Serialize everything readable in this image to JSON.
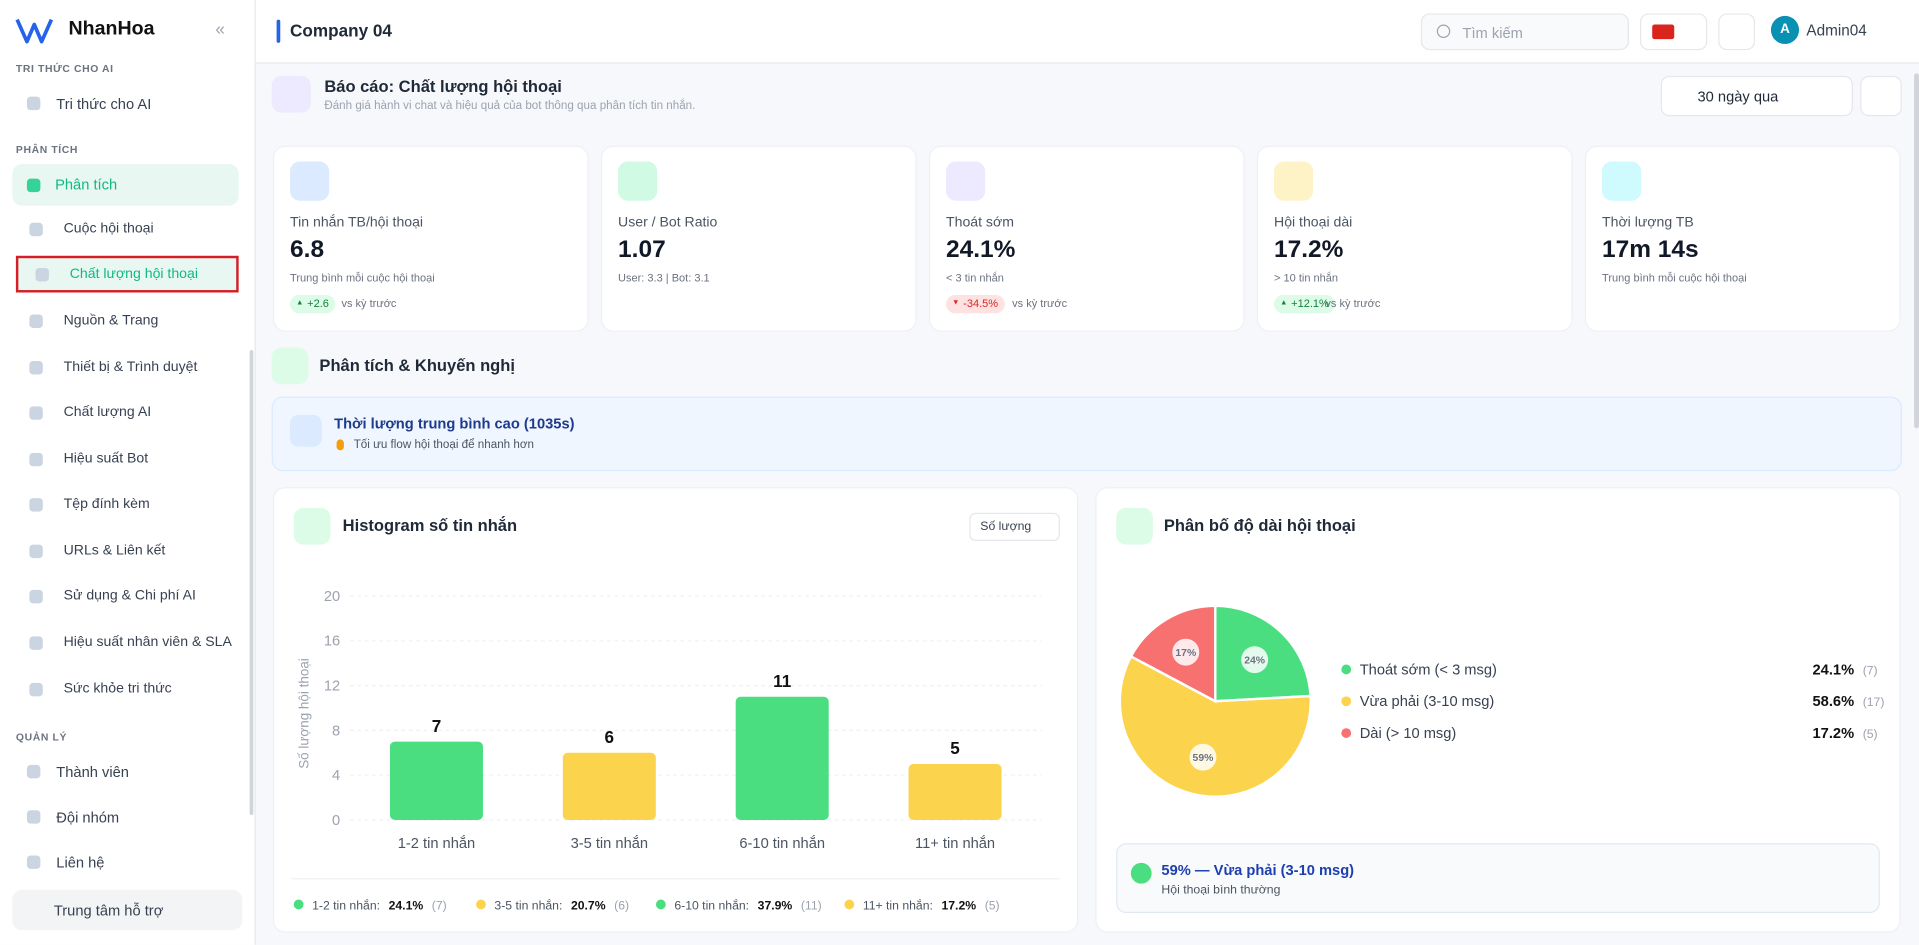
{
  "sidebar": {
    "brand": "NhanHoa",
    "sections": [
      {
        "title": "TRI THỨC CHO AI",
        "items": [
          "Tri thức cho AI"
        ]
      },
      {
        "title": "PHÂN TÍCH",
        "group": "Phân tích",
        "items": [
          "Cuộc hội thoại",
          "Chất lượng hội thoại",
          "Nguồn & Trang",
          "Thiết bị & Trình duyệt",
          "Chất lượng AI",
          "Hiệu suất Bot",
          "Tệp đính kèm",
          "URLs & Liên kết",
          "Sử dụng & Chi phí AI",
          "Hiệu suất nhân viên & SLA",
          "Sức khỏe tri thức"
        ]
      },
      {
        "title": "QUẢN LÝ",
        "items": [
          "Thành viên",
          "Đội nhóm",
          "Liên hệ"
        ]
      }
    ],
    "support": "Trung tâm hỗ trợ"
  },
  "header": {
    "company": "Company 04",
    "search": "Tìm kiếm",
    "avatar": "A",
    "user": "Admin04"
  },
  "report": {
    "title": "Báo cáo: Chất lượng hội thoại",
    "subtitle": "Đánh giá hành vi chat và hiệu quả của bot thông qua phân tích tin nhắn.",
    "range": "30 ngày qua"
  },
  "kpis": [
    {
      "label": "Tin nhắn TB/hội thoại",
      "value": "6.8",
      "note": "Trung bình mỗi cuộc hội thoại",
      "change": "+2.6",
      "compare": "vs kỳ trước"
    },
    {
      "label": "User / Bot Ratio",
      "value": "1.07",
      "note": "User: 3.3 | Bot: 3.1"
    },
    {
      "label": "Thoát sớm",
      "value": "24.1%",
      "note": "< 3 tin nhắn",
      "change": "-34.5%",
      "compare": "vs kỳ trước"
    },
    {
      "label": "Hội thoại dài",
      "value": "17.2%",
      "note": "> 10 tin nhắn",
      "change": "+12.1%",
      "compare": "vs kỳ trước"
    },
    {
      "label": "Thời lượng TB",
      "value": "17m 14s",
      "note": "Trung bình mỗi cuộc hội thoại"
    }
  ],
  "insights": {
    "title": "Phân tích & Khuyến nghị",
    "items": [
      {
        "title": "Thời lượng trung bình cao (1035s)",
        "tip": "Tối ưu flow hội thoại để nhanh hơn"
      }
    ]
  },
  "chart_data": [
    {
      "type": "bar",
      "title": "Histogram số tin nhắn",
      "selector": "Số lượng",
      "y_label": "Số lượng hội thoại",
      "categories": [
        "1-2 tin nhắn",
        "3-5 tin nhắn",
        "6-10 tin nhắn",
        "11+ tin nhắn"
      ],
      "values": [
        7,
        6,
        11,
        5
      ],
      "colors": [
        "#4ade80",
        "#fcd34d",
        "#4ade80",
        "#fcd34d"
      ],
      "ylim": [
        0,
        20
      ],
      "yticks": [
        0,
        4,
        8,
        12,
        16,
        20
      ],
      "grid": true,
      "legend": [
        {
          "label": "1-2 tin nhắn:",
          "share": "24.1%",
          "count": "(7)"
        },
        {
          "label": "3-5 tin nhắn:",
          "share": "20.7%",
          "count": "(6)"
        },
        {
          "label": "6-10 tin nhắn:",
          "share": "37.9%",
          "count": "(11)"
        },
        {
          "label": "11+ tin nhắn:",
          "share": "17.2%",
          "count": "(5)"
        }
      ]
    },
    {
      "type": "pie",
      "title": "Phân bố độ dài hội thoại",
      "categories": [
        "Thoát sớm (< 3 msg)",
        "Vừa phải (3-10 msg)",
        "Dài (> 10 msg)"
      ],
      "values": [
        24.1,
        58.6,
        17.2
      ],
      "value_labels": [
        "24%",
        "59%",
        "17%"
      ],
      "colors": [
        "#4ade80",
        "#fcd34d",
        "#f87171"
      ],
      "legend_values": [
        "24.1%",
        "58.6%",
        "17.2%"
      ],
      "counts": [
        "(7)",
        "(17)",
        "(5)"
      ],
      "summary": {
        "title": "59% — Vừa phải (3-10 msg)",
        "note": "Hội thoại bình thường"
      }
    }
  ]
}
